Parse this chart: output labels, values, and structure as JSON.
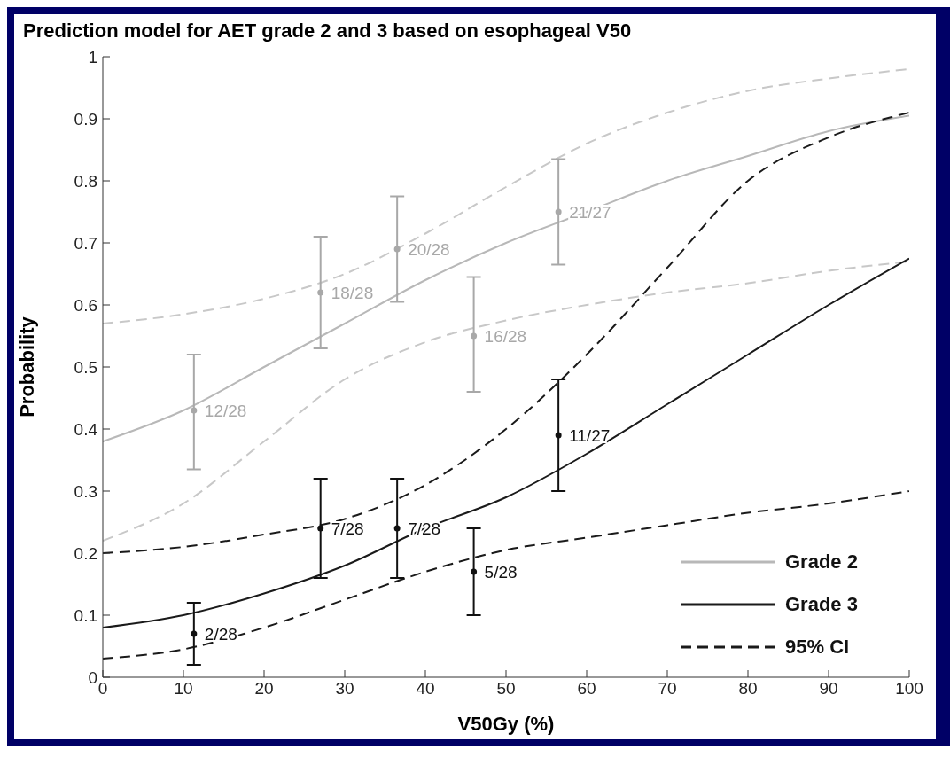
{
  "chart_data": {
    "type": "line",
    "title": "Prediction model for AET grade 2 and 3 based on esophageal V50",
    "xlabel": "V50Gy (%)",
    "ylabel": "Probability",
    "xlim": [
      0,
      100
    ],
    "xticks": [
      0,
      10,
      20,
      30,
      40,
      50,
      60,
      70,
      80,
      90,
      100
    ],
    "ylim": [
      0,
      1
    ],
    "yticks": [
      0,
      0.1,
      0.2,
      0.3,
      0.4,
      0.5,
      0.6,
      0.7,
      0.8,
      0.9,
      1
    ],
    "legend": "bottom right",
    "grid": false,
    "series": [
      {
        "name": "Grade 2",
        "color": "#b8b8b8",
        "line_style": "solid",
        "marker": "none",
        "x": [
          0,
          10,
          20,
          30,
          40,
          50,
          60,
          70,
          80,
          90,
          100
        ],
        "values": [
          0.38,
          0.43,
          0.5,
          0.57,
          0.64,
          0.7,
          0.75,
          0.8,
          0.84,
          0.88,
          0.905
        ]
      },
      {
        "color": "#c8c8c8",
        "line_style": "dashed",
        "marker": "none",
        "x": [
          0,
          10,
          20,
          30,
          40,
          50,
          60,
          70,
          80,
          90,
          100
        ],
        "values": [
          0.57,
          0.585,
          0.61,
          0.65,
          0.715,
          0.79,
          0.86,
          0.91,
          0.945,
          0.965,
          0.98
        ]
      },
      {
        "color": "#c8c8c8",
        "line_style": "dashed",
        "marker": "none",
        "x": [
          0,
          10,
          20,
          30,
          40,
          50,
          60,
          70,
          80,
          90,
          100
        ],
        "values": [
          0.22,
          0.28,
          0.38,
          0.48,
          0.54,
          0.575,
          0.6,
          0.62,
          0.635,
          0.655,
          0.67
        ]
      },
      {
        "name": "Grade 3",
        "color": "#1a1a1a",
        "line_style": "solid",
        "marker": "none",
        "x": [
          0,
          10,
          20,
          30,
          40,
          50,
          60,
          70,
          80,
          90,
          100
        ],
        "values": [
          0.08,
          0.1,
          0.135,
          0.18,
          0.24,
          0.29,
          0.36,
          0.44,
          0.52,
          0.6,
          0.675
        ]
      },
      {
        "name": "95% CI",
        "color": "#1a1a1a",
        "line_style": "dashed",
        "marker": "none",
        "x": [
          0,
          10,
          20,
          30,
          40,
          50,
          60,
          70,
          80,
          90,
          100
        ],
        "values": [
          0.2,
          0.21,
          0.23,
          0.255,
          0.31,
          0.4,
          0.52,
          0.66,
          0.8,
          0.87,
          0.91
        ]
      },
      {
        "color": "#1a1a1a",
        "line_style": "dashed",
        "marker": "none",
        "x": [
          0,
          10,
          20,
          30,
          40,
          50,
          60,
          70,
          80,
          90,
          100
        ],
        "values": [
          0.03,
          0.045,
          0.08,
          0.125,
          0.17,
          0.205,
          0.225,
          0.245,
          0.265,
          0.28,
          0.3
        ]
      },
      {
        "type": "scatter",
        "color": "#a8a8a8",
        "marker": "circle",
        "x": [
          11.3,
          27,
          36.5,
          46,
          56.5
        ],
        "values": [
          0.43,
          0.62,
          0.69,
          0.55,
          0.75
        ],
        "errors": [
          [
            0.335,
            0.52
          ],
          [
            0.53,
            0.71
          ],
          [
            0.605,
            0.775
          ],
          [
            0.46,
            0.645
          ],
          [
            0.665,
            0.835
          ]
        ],
        "value_labels": [
          "12/28",
          "18/28",
          "20/28",
          "16/28",
          "21/27"
        ]
      },
      {
        "type": "scatter",
        "color": "#111111",
        "marker": "circle",
        "x": [
          11.3,
          27,
          36.5,
          46,
          56.5
        ],
        "values": [
          0.07,
          0.24,
          0.24,
          0.17,
          0.39
        ],
        "errors": [
          [
            0.02,
            0.12
          ],
          [
            0.16,
            0.32
          ],
          [
            0.16,
            0.32
          ],
          [
            0.1,
            0.24
          ],
          [
            0.3,
            0.48
          ]
        ],
        "value_labels": [
          "2/28",
          "7/28",
          "7/28",
          "5/28",
          "11/27"
        ]
      }
    ]
  }
}
